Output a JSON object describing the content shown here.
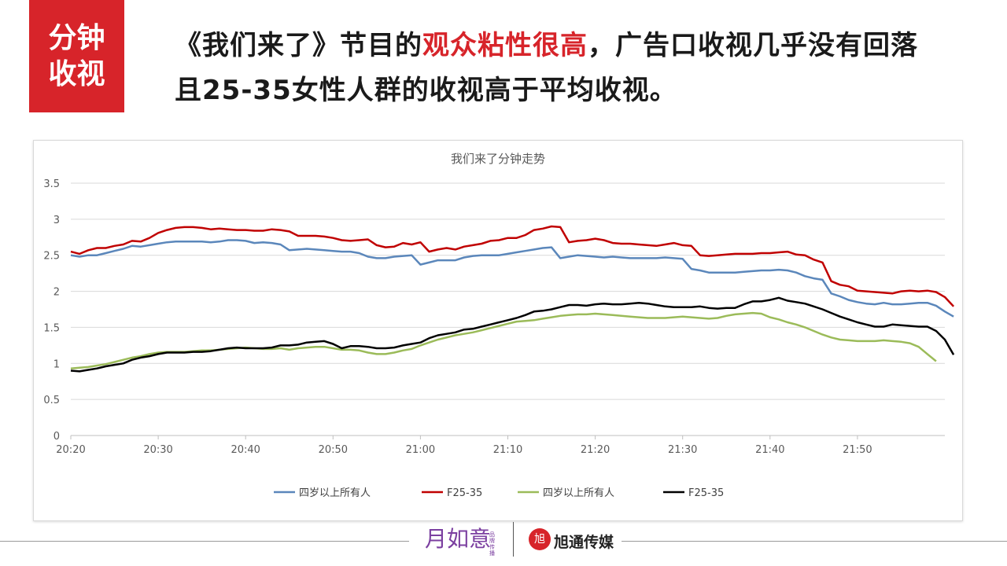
{
  "badge": {
    "line1": "分钟",
    "line2": "收视"
  },
  "headline": {
    "part1": "《我们来了》节目的",
    "highlight": "观众粘性很高",
    "part2": "，广告口收视几乎没有回落",
    "line2": "且25-35女性人群的收视高于平均收视。"
  },
  "footer": {
    "logo1": "月如意",
    "logo1_sub": "品牌传播",
    "logo2_mark": "旭",
    "logo2": "旭通传媒"
  },
  "colors": {
    "accent": "#d7242a",
    "blue": "#5b87bb",
    "red": "#c00000",
    "green": "#9bbb59",
    "black": "#000000"
  },
  "chart_data": {
    "type": "line",
    "title": "我们来了分钟走势",
    "xlabel": "",
    "ylabel": "",
    "ylim": [
      0,
      3.5
    ],
    "yticks": [
      "0",
      "0.5",
      "1",
      "1.5",
      "2",
      "2.5",
      "3",
      "3.5"
    ],
    "xticks": [
      "20:20",
      "20:30",
      "20:40",
      "20:50",
      "21:00",
      "21:10",
      "21:20",
      "21:30",
      "21:40",
      "21:50"
    ],
    "x_start_minute": 0,
    "grid": true,
    "legend_position": "bottom",
    "series": [
      {
        "name": "四岁以上所有人",
        "color": "#5b87bb",
        "values": [
          2.5,
          2.48,
          2.5,
          2.5,
          2.53,
          2.56,
          2.59,
          2.63,
          2.62,
          2.64,
          2.66,
          2.68,
          2.69,
          2.69,
          2.69,
          2.69,
          2.68,
          2.69,
          2.71,
          2.71,
          2.7,
          2.67,
          2.68,
          2.67,
          2.65,
          2.57,
          2.58,
          2.59,
          2.58,
          2.57,
          2.56,
          2.55,
          2.55,
          2.53,
          2.48,
          2.46,
          2.46,
          2.48,
          2.49,
          2.5,
          2.37,
          2.4,
          2.43,
          2.43,
          2.43,
          2.47,
          2.49,
          2.5,
          2.5,
          2.5,
          2.52,
          2.54,
          2.56,
          2.58,
          2.6,
          2.61,
          2.46,
          2.48,
          2.5,
          2.49,
          2.48,
          2.47,
          2.48,
          2.47,
          2.46,
          2.46,
          2.46,
          2.46,
          2.47,
          2.46,
          2.45,
          2.31,
          2.29,
          2.26,
          2.26,
          2.26,
          2.26,
          2.27,
          2.28,
          2.29,
          2.29,
          2.3,
          2.29,
          2.26,
          2.21,
          2.18,
          2.16,
          1.97,
          1.93,
          1.88,
          1.85,
          1.83,
          1.82,
          1.84,
          1.82,
          1.82,
          1.83,
          1.84,
          1.84,
          1.8,
          1.72,
          1.65
        ]
      },
      {
        "name": "F25-35",
        "color": "#c00000",
        "values": [
          2.55,
          2.52,
          2.57,
          2.6,
          2.6,
          2.63,
          2.65,
          2.7,
          2.69,
          2.74,
          2.81,
          2.85,
          2.88,
          2.89,
          2.89,
          2.88,
          2.86,
          2.87,
          2.86,
          2.85,
          2.85,
          2.84,
          2.84,
          2.86,
          2.85,
          2.83,
          2.77,
          2.77,
          2.77,
          2.76,
          2.74,
          2.71,
          2.7,
          2.71,
          2.72,
          2.64,
          2.61,
          2.62,
          2.67,
          2.65,
          2.68,
          2.55,
          2.58,
          2.6,
          2.58,
          2.62,
          2.64,
          2.66,
          2.7,
          2.71,
          2.74,
          2.74,
          2.78,
          2.85,
          2.87,
          2.9,
          2.89,
          2.68,
          2.7,
          2.71,
          2.73,
          2.71,
          2.67,
          2.66,
          2.66,
          2.65,
          2.64,
          2.63,
          2.65,
          2.67,
          2.64,
          2.63,
          2.5,
          2.49,
          2.5,
          2.51,
          2.52,
          2.52,
          2.52,
          2.53,
          2.53,
          2.54,
          2.55,
          2.51,
          2.5,
          2.44,
          2.4,
          2.14,
          2.09,
          2.07,
          2.01,
          2.0,
          1.99,
          1.98,
          1.97,
          2.0,
          2.01,
          2.0,
          2.01,
          1.99,
          1.92,
          1.79
        ]
      },
      {
        "name": "四岁以上所有人",
        "color": "#9bbb59",
        "values": [
          0.93,
          0.94,
          0.95,
          0.97,
          0.99,
          1.02,
          1.05,
          1.08,
          1.1,
          1.13,
          1.15,
          1.16,
          1.16,
          1.16,
          1.17,
          1.18,
          1.18,
          1.19,
          1.2,
          1.21,
          1.22,
          1.21,
          1.2,
          1.2,
          1.21,
          1.19,
          1.21,
          1.22,
          1.23,
          1.23,
          1.21,
          1.19,
          1.19,
          1.18,
          1.15,
          1.13,
          1.13,
          1.15,
          1.18,
          1.2,
          1.25,
          1.29,
          1.33,
          1.36,
          1.39,
          1.41,
          1.43,
          1.46,
          1.49,
          1.52,
          1.55,
          1.58,
          1.59,
          1.6,
          1.62,
          1.64,
          1.66,
          1.67,
          1.68,
          1.68,
          1.69,
          1.68,
          1.67,
          1.66,
          1.65,
          1.64,
          1.63,
          1.63,
          1.63,
          1.64,
          1.65,
          1.64,
          1.63,
          1.62,
          1.63,
          1.66,
          1.68,
          1.69,
          1.7,
          1.69,
          1.64,
          1.61,
          1.57,
          1.54,
          1.5,
          1.45,
          1.4,
          1.36,
          1.33,
          1.32,
          1.31,
          1.31,
          1.31,
          1.32,
          1.31,
          1.3,
          1.28,
          1.23,
          1.13,
          1.03
        ]
      },
      {
        "name": "F25-35",
        "color": "#000000",
        "values": [
          0.9,
          0.89,
          0.91,
          0.93,
          0.96,
          0.98,
          1.0,
          1.05,
          1.08,
          1.1,
          1.13,
          1.15,
          1.15,
          1.15,
          1.16,
          1.16,
          1.17,
          1.19,
          1.21,
          1.22,
          1.21,
          1.21,
          1.21,
          1.22,
          1.25,
          1.25,
          1.26,
          1.29,
          1.3,
          1.31,
          1.27,
          1.21,
          1.24,
          1.24,
          1.23,
          1.21,
          1.21,
          1.22,
          1.25,
          1.27,
          1.29,
          1.35,
          1.39,
          1.41,
          1.43,
          1.47,
          1.48,
          1.51,
          1.54,
          1.57,
          1.6,
          1.63,
          1.67,
          1.72,
          1.73,
          1.75,
          1.78,
          1.81,
          1.81,
          1.8,
          1.82,
          1.83,
          1.82,
          1.82,
          1.83,
          1.84,
          1.83,
          1.81,
          1.79,
          1.78,
          1.78,
          1.78,
          1.79,
          1.77,
          1.76,
          1.77,
          1.77,
          1.82,
          1.86,
          1.86,
          1.88,
          1.91,
          1.87,
          1.85,
          1.83,
          1.79,
          1.75,
          1.7,
          1.65,
          1.61,
          1.57,
          1.54,
          1.51,
          1.51,
          1.54,
          1.53,
          1.52,
          1.51,
          1.51,
          1.45,
          1.33,
          1.12
        ]
      }
    ]
  }
}
